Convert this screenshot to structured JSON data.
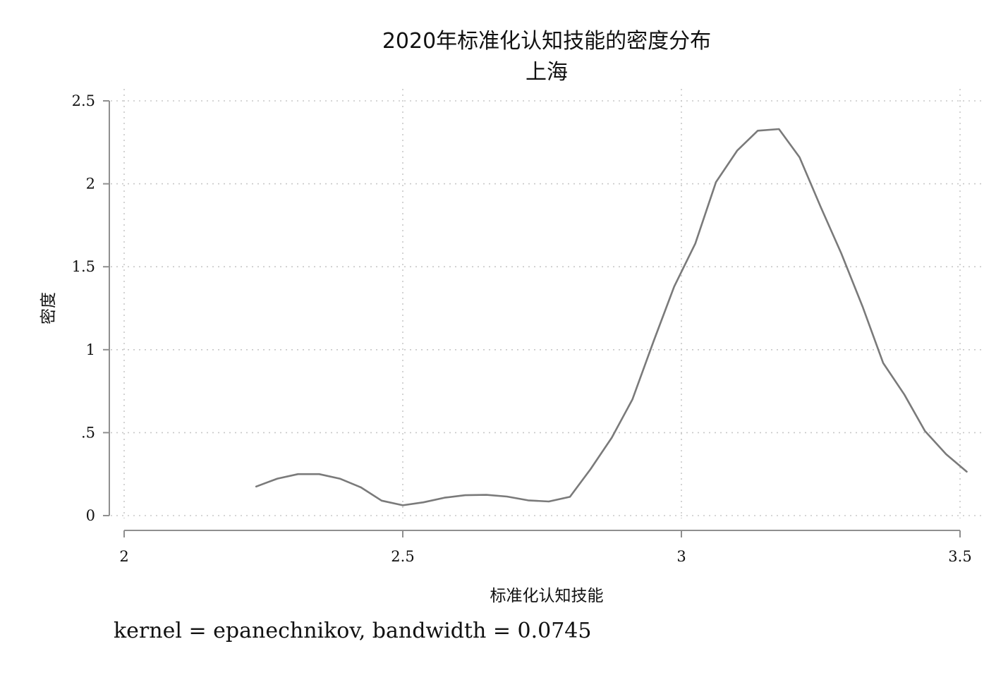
{
  "chart_data": {
    "type": "line",
    "title": "2020年标准化认知技能的密度分布",
    "subtitle": "上海",
    "xlabel": "标准化认知技能",
    "ylabel": "密度",
    "note": "kernel = epanechnikov, bandwidth = 0.0745",
    "xlim": [
      2,
      3.5
    ],
    "ylim": [
      0,
      2.5
    ],
    "x_ticks": [
      2,
      2.5,
      3,
      3.5
    ],
    "x_tick_labels": [
      "2",
      "2.5",
      "3",
      "3.5"
    ],
    "y_ticks": [
      0,
      0.5,
      1,
      1.5,
      2,
      2.5
    ],
    "y_tick_labels": [
      "0",
      ".5",
      "1",
      "1.5",
      "2",
      "2.5"
    ],
    "grid": true,
    "series": [
      {
        "color": "#7a7a7a",
        "x": [
          2.237,
          2.275,
          2.312,
          2.35,
          2.387,
          2.425,
          2.462,
          2.5,
          2.537,
          2.575,
          2.612,
          2.65,
          2.687,
          2.725,
          2.762,
          2.8,
          2.837,
          2.875,
          2.912,
          2.95,
          2.987,
          3.025,
          3.062,
          3.1,
          3.137,
          3.175,
          3.212,
          3.25,
          3.287,
          3.325,
          3.362,
          3.4,
          3.437,
          3.475,
          3.512
        ],
        "y": [
          0.175,
          0.223,
          0.25,
          0.25,
          0.223,
          0.17,
          0.09,
          0.062,
          0.08,
          0.108,
          0.123,
          0.125,
          0.115,
          0.092,
          0.085,
          0.113,
          0.28,
          0.47,
          0.7,
          1.05,
          1.38,
          1.64,
          2.01,
          2.2,
          2.32,
          2.33,
          2.16,
          1.86,
          1.58,
          1.26,
          0.92,
          0.73,
          0.51,
          0.37,
          0.265
        ]
      }
    ]
  }
}
